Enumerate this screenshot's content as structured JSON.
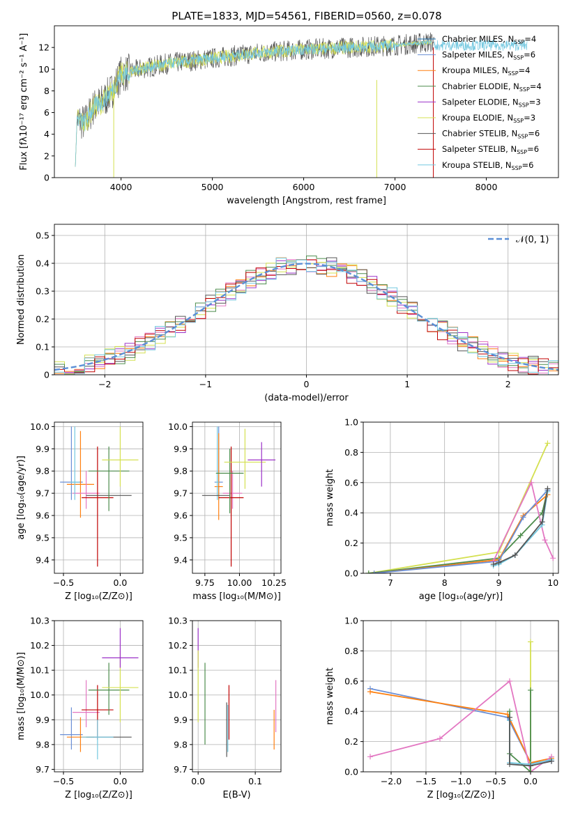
{
  "figure_title": "PLATE=1833, MJD=54561, FIBERID=0560, z=0.078",
  "colors": {
    "Chabrier MILES": "#1f77b4",
    "Salpeter MILES": "#6a8fd6",
    "Kroupa MILES": "#ff7f0e",
    "Chabrier ELODIE": "#4c8c4c",
    "Salpeter ELODIE": "#9b30c8",
    "Kroupa ELODIE": "#d4e050",
    "Chabrier STELIB": "#555555",
    "Salpeter STELIB": "#c00000",
    "Kroupa STELIB": "#73c8e0",
    "normal": "#5b8fd6",
    "pink": "#e377c2"
  },
  "chart_data": [
    {
      "type": "line",
      "id": "spectrum",
      "xlabel": "wavelength [Angstrom, rest frame]",
      "ylabel": "Flux [fλ10⁻¹⁷ erg cm⁻² s⁻¹ A⁻¹]",
      "xlim": [
        3270,
        8790
      ],
      "ylim": [
        0,
        14
      ],
      "xticks": [
        4000,
        5000,
        6000,
        7000,
        8000
      ],
      "yticks": [
        0,
        2,
        4,
        6,
        8,
        10,
        12
      ],
      "legend_position": "upper right",
      "series": [
        {
          "name": "Chabrier MILES, Nₛₛₚ=4"
        },
        {
          "name": "Salpeter MILES, Nₛₛₚ=6"
        },
        {
          "name": "Kroupa MILES, Nₛₛₚ=4"
        },
        {
          "name": "Chabrier ELODIE, Nₛₛₚ=4"
        },
        {
          "name": "Salpeter ELODIE, Nₛₛₚ=3"
        },
        {
          "name": "Kroupa ELODIE, Nₛₛₚ=3"
        },
        {
          "name": "Chabrier STELIB, Nₛₛₚ=6"
        },
        {
          "name": "Salpeter STELIB, Nₛₛₚ=6"
        },
        {
          "name": "Kroupa STELIB, Nₛₛₚ=6"
        }
      ],
      "envelope_x": [
        3500,
        3600,
        3700,
        3800,
        3900,
        4000,
        4200,
        4500,
        5000,
        5500,
        6000,
        6500,
        7000,
        7400
      ],
      "envelope_y": [
        5.5,
        5.0,
        6.5,
        7.0,
        8.0,
        9.5,
        10.0,
        10.5,
        11.0,
        11.5,
        11.8,
        12.0,
        12.2,
        12.5
      ]
    },
    {
      "type": "histogram",
      "id": "residuals",
      "xlabel": "(data-model)/error",
      "ylabel": "Normed distribution",
      "xlim": [
        -2.5,
        2.5
      ],
      "ylim": [
        0,
        0.54
      ],
      "xticks": [
        -2,
        -1,
        0,
        1,
        2
      ],
      "yticks": [
        0.0,
        0.1,
        0.2,
        0.3,
        0.4,
        0.5
      ],
      "grid": true,
      "legend": "𝒩(0, 1)",
      "legend_position": "upper right"
    },
    {
      "type": "errorbar",
      "id": "age_vs_Z",
      "xlabel": "Z [log₁₀(Z/Z⊙)]",
      "ylabel": "age  [log₁₀(age/yr)]",
      "xlim": [
        -0.58,
        0.2
      ],
      "ylim": [
        9.34,
        10.02
      ],
      "xticks": [
        -0.5,
        0.0
      ],
      "yticks": [
        9.4,
        9.5,
        9.6,
        9.7,
        9.8,
        9.9,
        10.0
      ],
      "points": [
        {
          "s": "Salpeter MILES",
          "x": -0.43,
          "y": 9.75,
          "xerr": 0.1,
          "yerr": [
            0.08,
            0.25
          ]
        },
        {
          "s": "Kroupa MILES",
          "x": -0.35,
          "y": 9.74,
          "xerr": 0.12,
          "yerr": [
            0.15,
            0.24
          ]
        },
        {
          "s": "pink",
          "x": -0.3,
          "y": 9.7,
          "xerr": 0.12,
          "yerr": [
            0.07,
            0.1
          ]
        },
        {
          "s": "Kroupa STELIB",
          "x": -0.4,
          "y": 9.75,
          "xerr": 0.04,
          "yerr": [
            0.08,
            0.25
          ]
        },
        {
          "s": "Salpeter STELIB",
          "x": -0.2,
          "y": 9.68,
          "xerr": 0.14,
          "yerr": [
            0.31,
            0.23
          ]
        },
        {
          "s": "Chabrier STELIB",
          "x": -0.1,
          "y": 9.69,
          "xerr": 0.2,
          "yerr": [
            0.0,
            0.0
          ]
        },
        {
          "s": "Chabrier ELODIE",
          "x": -0.1,
          "y": 9.8,
          "xerr": 0.18,
          "yerr": [
            0.18,
            0.11
          ]
        },
        {
          "s": "Kroupa ELODIE",
          "x": 0.0,
          "y": 9.85,
          "xerr": 0.16,
          "yerr": [
            0.12,
            0.15
          ]
        }
      ]
    },
    {
      "type": "errorbar",
      "id": "age_vs_mass",
      "xlabel": "mass [log₁₀(M/M⊙)]",
      "ylabel": "",
      "xlim": [
        9.66,
        10.3
      ],
      "ylim": [
        9.34,
        10.02
      ],
      "xticks": [
        9.75,
        10.0,
        10.25
      ],
      "yticks": [
        9.4,
        9.5,
        9.6,
        9.7,
        9.8,
        9.9,
        10.0
      ],
      "points": [
        {
          "s": "Salpeter MILES",
          "x": 9.85,
          "y": 9.75,
          "xerr": 0.03,
          "yerr": [
            0.08,
            0.25
          ]
        },
        {
          "s": "Kroupa MILES",
          "x": 9.85,
          "y": 9.73,
          "xerr": 0.03,
          "yerr": [
            0.15,
            0.24
          ]
        },
        {
          "s": "pink",
          "x": 9.95,
          "y": 9.7,
          "xerr": 0.07,
          "yerr": [
            0.07,
            0.1
          ]
        },
        {
          "s": "Kroupa STELIB",
          "x": 9.84,
          "y": 9.75,
          "xerr": 0.01,
          "yerr": [
            0.08,
            0.25
          ]
        },
        {
          "s": "Salpeter STELIB",
          "x": 9.94,
          "y": 9.68,
          "xerr": 0.09,
          "yerr": [
            0.31,
            0.23
          ]
        },
        {
          "s": "Chabrier STELIB",
          "x": 9.83,
          "y": 9.69,
          "xerr": 0.1,
          "yerr": [
            0.0,
            0.0
          ]
        },
        {
          "s": "Chabrier ELODIE",
          "x": 9.93,
          "y": 9.79,
          "xerr": 0.1,
          "yerr": [
            0.18,
            0.11
          ]
        },
        {
          "s": "Kroupa ELODIE",
          "x": 10.04,
          "y": 9.84,
          "xerr": 0.15,
          "yerr": [
            0.12,
            0.15
          ]
        },
        {
          "s": "Salpeter ELODIE",
          "x": 10.16,
          "y": 9.85,
          "xerr": 0.1,
          "yerr": [
            0.12,
            0.08
          ]
        }
      ]
    },
    {
      "type": "line",
      "id": "weight_vs_age",
      "xlabel": "age  [log₁₀(age/yr)]",
      "ylabel": "mass weight",
      "xlim": [
        6.5,
        10.1
      ],
      "ylim": [
        0,
        1.0
      ],
      "xticks": [
        7,
        8,
        9,
        10
      ],
      "yticks": [
        0.0,
        0.2,
        0.4,
        0.6,
        0.8,
        1.0
      ],
      "grid": true,
      "series": [
        {
          "s": "Kroupa ELODIE",
          "x": [
            6.6,
            9.0,
            9.9
          ],
          "y": [
            0.0,
            0.14,
            0.86
          ]
        },
        {
          "s": "Chabrier ELODIE",
          "x": [
            6.6,
            9.0,
            9.4,
            9.8,
            9.9
          ],
          "y": [
            0.0,
            0.1,
            0.25,
            0.4,
            0.55
          ]
        },
        {
          "s": "Kroupa MILES",
          "x": [
            6.7,
            9.0,
            9.45,
            9.9
          ],
          "y": [
            0.0,
            0.09,
            0.38,
            0.52
          ]
        },
        {
          "s": "Salpeter MILES",
          "x": [
            6.7,
            9.0,
            9.45,
            9.9
          ],
          "y": [
            0.0,
            0.08,
            0.37,
            0.55
          ]
        },
        {
          "s": "pink",
          "x": [
            8.9,
            9.6,
            9.85,
            10.0
          ],
          "y": [
            0.08,
            0.6,
            0.22,
            0.1
          ]
        },
        {
          "s": "Kroupa STELIB",
          "x": [
            8.9,
            9.0,
            9.3,
            9.8,
            9.9
          ],
          "y": [
            0.05,
            0.06,
            0.12,
            0.32,
            0.54
          ]
        },
        {
          "s": "Chabrier STELIB",
          "x": [
            8.9,
            9.0,
            9.3,
            9.8,
            9.9
          ],
          "y": [
            0.06,
            0.07,
            0.12,
            0.34,
            0.56
          ]
        }
      ]
    },
    {
      "type": "errorbar",
      "id": "mass_vs_Z",
      "xlabel": "Z [log₁₀(Z/Z⊙)]",
      "ylabel": "mass [log₁₀(M/M⊙)]",
      "xlim": [
        -0.58,
        0.2
      ],
      "ylim": [
        9.69,
        10.3
      ],
      "xticks": [
        -0.5,
        0.0
      ],
      "yticks": [
        9.7,
        9.8,
        9.9,
        10.0,
        10.1,
        10.2,
        10.3
      ],
      "points": [
        {
          "s": "Salpeter MILES",
          "x": -0.43,
          "y": 9.84,
          "xerr": 0.1,
          "yerr": [
            0.06,
            0.11
          ]
        },
        {
          "s": "Kroupa MILES",
          "x": -0.35,
          "y": 9.83,
          "xerr": 0.12,
          "yerr": [
            0.06,
            0.08
          ]
        },
        {
          "s": "pink",
          "x": -0.3,
          "y": 9.93,
          "xerr": 0.12,
          "yerr": [
            0.06,
            0.13
          ]
        },
        {
          "s": "Salpeter STELIB",
          "x": -0.2,
          "y": 9.94,
          "xerr": 0.14,
          "yerr": [
            0.12,
            0.1
          ]
        },
        {
          "s": "Chabrier STELIB",
          "x": -0.1,
          "y": 9.83,
          "xerr": 0.2,
          "yerr": [
            0.0,
            0.0
          ]
        },
        {
          "s": "Kroupa STELIB",
          "x": -0.2,
          "y": 9.83,
          "xerr": 0.14,
          "yerr": [
            0.09,
            0.07
          ]
        },
        {
          "s": "Chabrier ELODIE",
          "x": -0.1,
          "y": 10.02,
          "xerr": 0.18,
          "yerr": [
            0.1,
            0.11
          ]
        },
        {
          "s": "Kroupa ELODIE",
          "x": 0.0,
          "y": 10.03,
          "xerr": 0.16,
          "yerr": [
            0.14,
            0.15
          ]
        },
        {
          "s": "Salpeter ELODIE",
          "x": 0.0,
          "y": 10.15,
          "xerr": 0.16,
          "yerr": [
            0.04,
            0.12
          ]
        }
      ]
    },
    {
      "type": "errorbar",
      "id": "mass_vs_EBV",
      "xlabel": "E(B-V)",
      "ylabel": "",
      "xlim": [
        -0.01,
        0.145
      ],
      "ylim": [
        9.69,
        10.3
      ],
      "xticks": [
        0.0,
        0.1
      ],
      "yticks": [
        9.7,
        9.8,
        9.9,
        10.0,
        10.1,
        10.2,
        10.3
      ],
      "points": [
        {
          "s": "Salpeter ELODIE",
          "x": 0.0,
          "y": 10.15,
          "yerr": [
            0.04,
            0.12
          ]
        },
        {
          "s": "Kroupa ELODIE",
          "x": 0.0,
          "y": 10.03,
          "yerr": [
            0.14,
            0.15
          ]
        },
        {
          "s": "Chabrier ELODIE",
          "x": 0.012,
          "y": 10.0,
          "yerr": [
            0.2,
            0.13
          ]
        },
        {
          "s": "Chabrier STELIB",
          "x": 0.05,
          "y": 9.87,
          "yerr": [
            0.12,
            0.1
          ]
        },
        {
          "s": "Kroupa STELIB",
          "x": 0.052,
          "y": 9.88,
          "yerr": [
            0.11,
            0.08
          ]
        },
        {
          "s": "Salpeter STELIB",
          "x": 0.054,
          "y": 9.94,
          "yerr": [
            0.12,
            0.1
          ]
        },
        {
          "s": "pink",
          "x": 0.136,
          "y": 9.95,
          "yerr": [
            0.1,
            0.11
          ]
        },
        {
          "s": "Kroupa MILES",
          "x": 0.133,
          "y": 9.88,
          "yerr": [
            0.1,
            0.06
          ]
        }
      ]
    },
    {
      "type": "line",
      "id": "weight_vs_Z",
      "xlabel": "Z [log₁₀(Z/Z⊙)]",
      "ylabel": "mass weight",
      "xlim": [
        -2.4,
        0.4
      ],
      "ylim": [
        0,
        1.0
      ],
      "xticks": [
        -2.0,
        -1.5,
        -1.0,
        -0.5,
        0.0
      ],
      "yticks": [
        0.0,
        0.2,
        0.4,
        0.6,
        0.8,
        1.0
      ],
      "grid": true,
      "series": [
        {
          "s": "Salpeter MILES",
          "x": [
            -2.3,
            -0.33,
            0.0,
            0.3
          ],
          "y": [
            0.55,
            0.36,
            0.06,
            0.07
          ]
        },
        {
          "s": "Kroupa MILES",
          "x": [
            -2.3,
            -0.33,
            0.0,
            0.3
          ],
          "y": [
            0.53,
            0.38,
            0.06,
            0.09
          ]
        },
        {
          "s": "pink",
          "x": [
            -2.3,
            -1.3,
            -0.3,
            0.0,
            0.3
          ],
          "y": [
            0.1,
            0.22,
            0.6,
            0.0,
            0.1
          ]
        },
        {
          "s": "Kroupa ELODIE",
          "x": [
            0.0,
            0.0
          ],
          "y": [
            0.0,
            0.86
          ]
        },
        {
          "s": "Chabrier ELODIE",
          "x": [
            -0.3,
            -0.3,
            0.0,
            0.0
          ],
          "y": [
            0.4,
            0.12,
            0.0,
            0.54
          ]
        },
        {
          "s": "Kroupa STELIB",
          "x": [
            -0.3,
            -0.3,
            0.0,
            0.3
          ],
          "y": [
            0.34,
            0.06,
            0.05,
            0.08
          ]
        },
        {
          "s": "Chabrier STELIB",
          "x": [
            -0.3,
            -0.3,
            0.0,
            0.3
          ],
          "y": [
            0.36,
            0.05,
            0.04,
            0.07
          ]
        }
      ]
    }
  ]
}
